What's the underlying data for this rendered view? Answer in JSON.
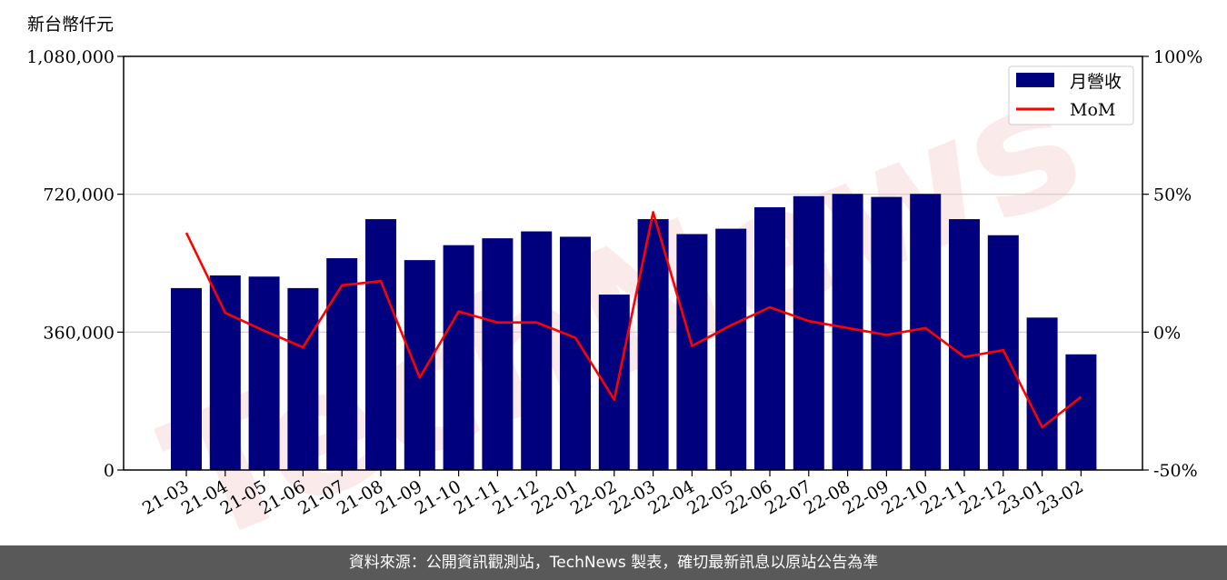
{
  "chart_data": {
    "type": "bar",
    "unit_label": "新台幣仟元",
    "categories": [
      "21-03",
      "21-04",
      "21-05",
      "21-06",
      "21-07",
      "21-08",
      "21-09",
      "21-10",
      "21-11",
      "21-12",
      "22-01",
      "22-02",
      "22-03",
      "22-04",
      "22-05",
      "22-06",
      "22-07",
      "22-08",
      "22-09",
      "22-10",
      "22-11",
      "22-12",
      "23-01",
      "23-02"
    ],
    "series": [
      {
        "name": "月營收",
        "type": "bar",
        "axis": "left",
        "color": "#00007f",
        "values": [
          475000,
          508000,
          505000,
          475000,
          553000,
          655000,
          548000,
          587000,
          605000,
          623000,
          609000,
          458000,
          655000,
          616000,
          630000,
          686000,
          715000,
          721000,
          713000,
          721000,
          655000,
          613000,
          398000,
          302000
        ]
      },
      {
        "name": "MoM",
        "type": "line",
        "axis": "right",
        "color": "#ff0000",
        "values": [
          36,
          7,
          0.5,
          -5.5,
          17,
          18.5,
          -16.5,
          7.5,
          3.5,
          3.5,
          -2,
          -24.5,
          43.5,
          -5,
          2.5,
          9,
          4,
          1.5,
          -1,
          1.5,
          -9,
          -6.5,
          -34.5,
          -23.5
        ]
      }
    ],
    "ylim_left": [
      0,
      1080000
    ],
    "yticks_left": [
      "0",
      "360,000",
      "720,000",
      "1,080,000"
    ],
    "ylim_right": [
      -50,
      100
    ],
    "yticks_right": [
      "-50%",
      "0%",
      "50%",
      "100%"
    ],
    "grid": "horizontal",
    "legend": "top-right",
    "watermark": "TechNews"
  },
  "footer": {
    "source_note": "資料來源：公開資訊觀測站，TechNews 製表，確切最新訊息以原站公告為準"
  }
}
